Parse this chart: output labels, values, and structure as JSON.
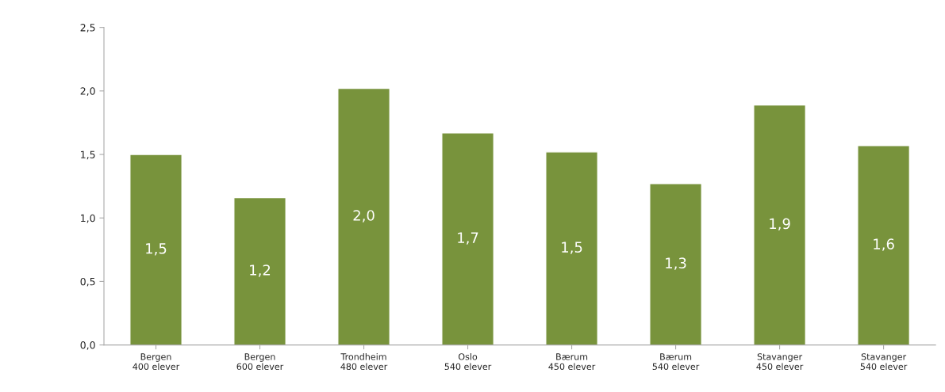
{
  "chart_data": {
    "type": "bar",
    "categories": [
      "Bergen\n400 elever",
      "Bergen\n600 elever",
      "Trondheim\n480 elever",
      "Oslo\n540 elever",
      "Bærum\n450 elever",
      "Bærum\n540 elever",
      "Stavanger\n450 elever",
      "Stavanger\n540 elever"
    ],
    "values": [
      1.5,
      1.16,
      2.02,
      1.67,
      1.52,
      1.27,
      1.89,
      1.57
    ],
    "value_labels": [
      "1,5",
      "1,2",
      "2,0",
      "1,7",
      "1,5",
      "1,3",
      "1,9",
      "1,6"
    ],
    "color": "#78933c",
    "ylim": [
      0,
      2.5
    ],
    "yticks": [
      {
        "value": 0,
        "label": "0,0"
      },
      {
        "value": 0.5,
        "label": "0,5"
      },
      {
        "value": 1,
        "label": "1,0"
      },
      {
        "value": 1.5,
        "label": "1,5"
      },
      {
        "value": 2,
        "label": "2,0"
      },
      {
        "value": 2.5,
        "label": "2,5"
      }
    ],
    "grid": false,
    "legend": false
  }
}
